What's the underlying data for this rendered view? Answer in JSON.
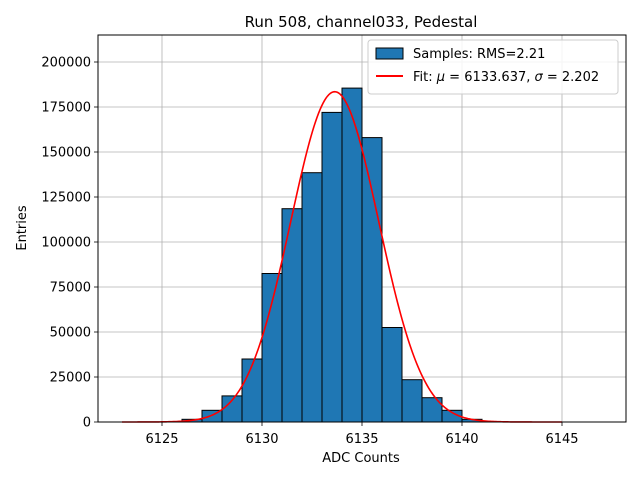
{
  "chart_data": {
    "type": "bar",
    "title": "Run 508, channel033, Pedestal",
    "xlabel": "ADC Counts",
    "ylabel": "Entries",
    "xlim": [
      6121.8,
      6148.2
    ],
    "ylim": [
      0,
      215000
    ],
    "xticks": [
      6125,
      6130,
      6135,
      6140,
      6145
    ],
    "yticks": [
      0,
      25000,
      50000,
      75000,
      100000,
      125000,
      150000,
      175000,
      200000
    ],
    "grid": true,
    "legend_position": "top-right",
    "colors": {
      "bar": "#1f77b4",
      "bar_edge": "#000000",
      "fit": "#ff0000",
      "grid": "#b0b0b0"
    },
    "series": [
      {
        "name": "Samples: RMS=2.21",
        "kind": "histogram",
        "bin_width": 1,
        "bin_starts": [
          6126,
          6127,
          6128,
          6129,
          6130,
          6131,
          6132,
          6133,
          6134,
          6135,
          6136,
          6137,
          6138,
          6139,
          6140
        ],
        "values": [
          1500,
          6500,
          14500,
          35000,
          82500,
          118500,
          138500,
          172000,
          185500,
          158000,
          52500,
          23500,
          13500,
          6500,
          1500
        ]
      },
      {
        "name": "Fit: μ = 6133.637, σ = 2.202",
        "kind": "gaussian_fit",
        "mu": 6133.637,
        "sigma": 2.202,
        "amplitude": 183500,
        "x_range": [
          6123,
          6145
        ]
      }
    ]
  }
}
